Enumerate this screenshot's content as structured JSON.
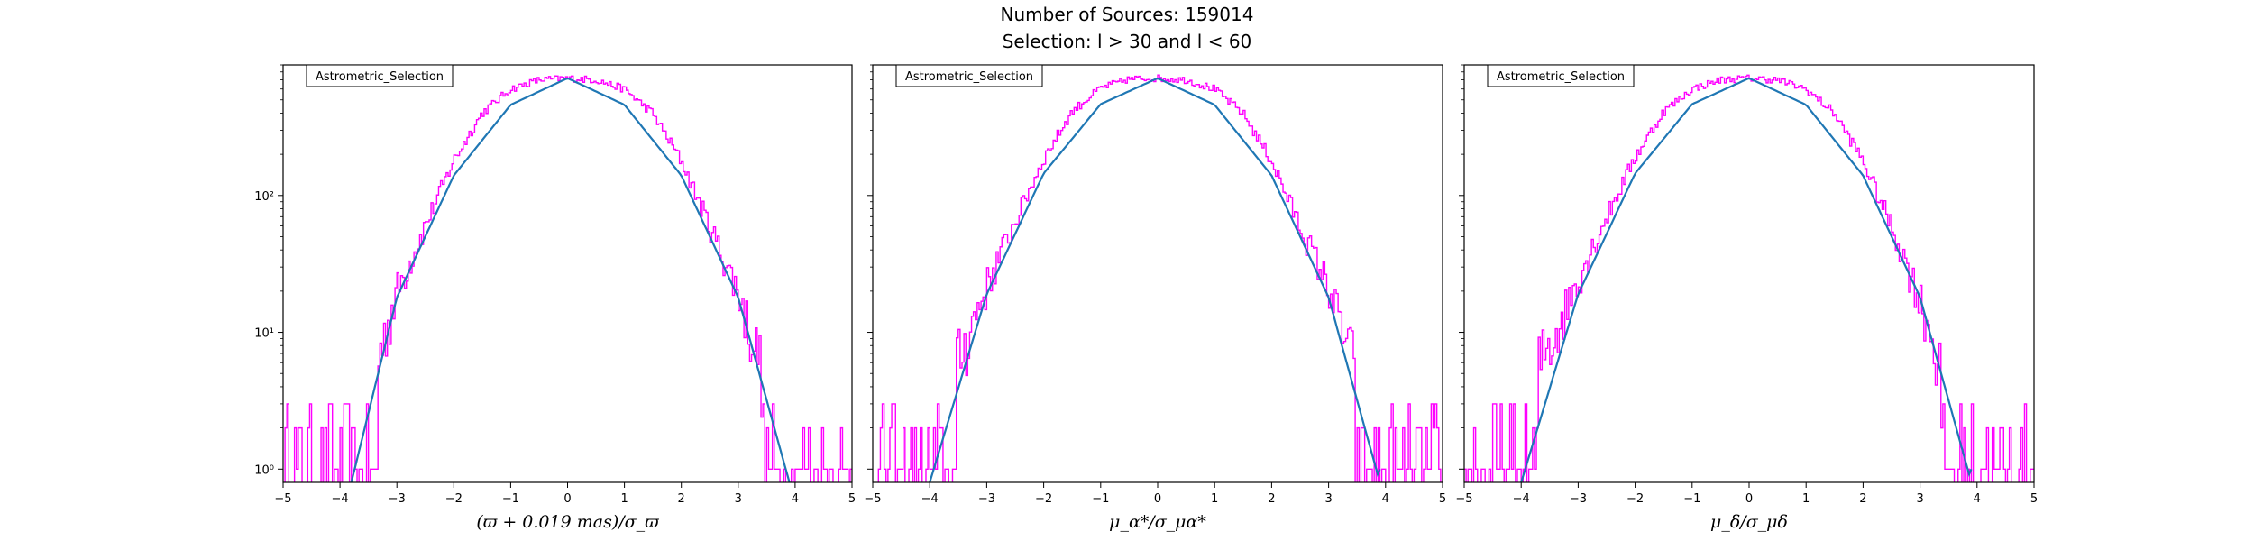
{
  "figure": {
    "title": "Number of Sources: 159014",
    "subtitle": "Selection: l > 30 and l < 60"
  },
  "colors": {
    "histogram": "#ff00ff",
    "fit": "#1f77b4",
    "axes": "#000000"
  },
  "chart_data": [
    {
      "type": "line",
      "legend": "Astrometric_Selection",
      "xlabel": "(ϖ + 0.019 mas)/σ_ϖ",
      "xlim": [
        -5,
        5
      ],
      "ylim": [
        0.8,
        900
      ],
      "yscale": "log",
      "xticks": [
        "−5",
        "−4",
        "−3",
        "−2",
        "−1",
        "0",
        "1",
        "2",
        "3",
        "4",
        "5"
      ],
      "yticks": [
        {
          "value": 1,
          "label": "10⁰"
        },
        {
          "value": 10,
          "label": "10¹"
        },
        {
          "value": 100,
          "label": "10²"
        }
      ],
      "series": [
        {
          "kind": "histogram",
          "x": [
            -4.8,
            -4.4,
            -4.0,
            -3.7,
            -3.4,
            -3.0,
            -2.5,
            -2.0,
            -1.5,
            -1.0,
            -0.5,
            0.0,
            0.5,
            1.0,
            1.5,
            2.0,
            2.5,
            3.0,
            3.3,
            3.6,
            3.9,
            4.2,
            4.6
          ],
          "y": [
            1,
            1,
            2,
            1,
            5,
            20,
            60,
            180,
            400,
            600,
            700,
            720,
            700,
            600,
            400,
            180,
            60,
            20,
            8,
            4,
            2,
            1,
            1
          ]
        },
        {
          "kind": "gaussian_fit",
          "x": [
            -3.8,
            -3.0,
            -2.0,
            -1.0,
            0.0,
            1.0,
            2.0,
            3.0,
            3.9
          ],
          "y": [
            0.8,
            18,
            140,
            460,
            720,
            460,
            140,
            18,
            0.8
          ]
        }
      ]
    },
    {
      "type": "line",
      "legend": "Astrometric_Selection",
      "xlabel": "μ_α*/σ_μα*",
      "xlim": [
        -5,
        5
      ],
      "ylim": [
        0.8,
        900
      ],
      "yscale": "log",
      "xticks": [
        "−5",
        "−4",
        "−3",
        "−2",
        "−1",
        "0",
        "1",
        "2",
        "3",
        "4",
        "5"
      ],
      "series": [
        {
          "kind": "histogram",
          "x": [
            -4.8,
            -4.4,
            -4.0,
            -3.7,
            -3.4,
            -3.0,
            -2.5,
            -2.0,
            -1.5,
            -1.0,
            -0.5,
            0.0,
            0.5,
            1.0,
            1.5,
            2.0,
            2.5,
            3.0,
            3.3,
            3.6,
            3.9,
            4.2,
            4.6
          ],
          "y": [
            1,
            2,
            2,
            4,
            8,
            22,
            65,
            185,
            410,
            610,
            710,
            720,
            700,
            600,
            400,
            180,
            60,
            22,
            9,
            4,
            2,
            1,
            1
          ]
        },
        {
          "kind": "gaussian_fit",
          "x": [
            -4.0,
            -3.0,
            -2.0,
            -1.0,
            0.0,
            1.0,
            2.0,
            3.0,
            3.9
          ],
          "y": [
            0.8,
            19,
            145,
            465,
            720,
            460,
            140,
            18,
            0.8
          ]
        }
      ]
    },
    {
      "type": "line",
      "legend": "Astrometric_Selection",
      "xlabel": "μ_δ/σ_μδ",
      "xlim": [
        -5,
        5
      ],
      "ylim": [
        0.8,
        900
      ],
      "yscale": "log",
      "xticks": [
        "−5",
        "−4",
        "−3",
        "−2",
        "−1",
        "0",
        "1",
        "2",
        "3",
        "4",
        "5"
      ],
      "series": [
        {
          "kind": "histogram",
          "x": [
            -4.8,
            -4.4,
            -4.0,
            -3.7,
            -3.4,
            -3.0,
            -2.5,
            -2.0,
            -1.5,
            -1.0,
            -0.5,
            0.0,
            0.5,
            1.0,
            1.5,
            2.0,
            2.5,
            3.0,
            3.3,
            3.6,
            3.9,
            4.2,
            4.6
          ],
          "y": [
            2,
            2,
            3,
            6,
            10,
            25,
            70,
            190,
            410,
            600,
            700,
            720,
            700,
            600,
            400,
            180,
            60,
            18,
            7,
            3,
            2,
            1,
            1
          ]
        },
        {
          "kind": "gaussian_fit",
          "x": [
            -4.0,
            -3.0,
            -2.0,
            -1.0,
            0.0,
            1.0,
            2.0,
            3.0,
            3.9
          ],
          "y": [
            0.8,
            19,
            145,
            465,
            720,
            460,
            140,
            18,
            0.8
          ]
        }
      ]
    }
  ]
}
